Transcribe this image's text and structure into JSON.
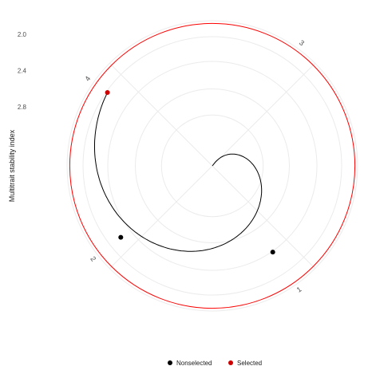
{
  "chart_data": {
    "type": "polar-line",
    "xlabel": "",
    "ylabel": "Multitrait stability index",
    "r_ticks": [
      "2.0",
      "2.4",
      "2.8"
    ],
    "r_axis": {
      "inner_value": 3.45,
      "outer_value": 1.85,
      "reversed": true
    },
    "categories": [
      "1",
      "2",
      "3",
      "4"
    ],
    "series": [
      {
        "name": "Nonselected",
        "color": "#000000",
        "points": [
          {
            "category": "1",
            "value": 2.29
          },
          {
            "category": "2",
            "value": 2.17
          }
        ]
      },
      {
        "name": "Selected",
        "color": "#cc0000",
        "points": [
          {
            "category": "4",
            "value": 2.04
          }
        ]
      }
    ],
    "cutpoint_circle": {
      "value": 1.88,
      "color": "#ff0000"
    },
    "grid": true,
    "legend": {
      "position": "bottom",
      "entries": [
        "Nonselected",
        "Selected"
      ]
    }
  }
}
